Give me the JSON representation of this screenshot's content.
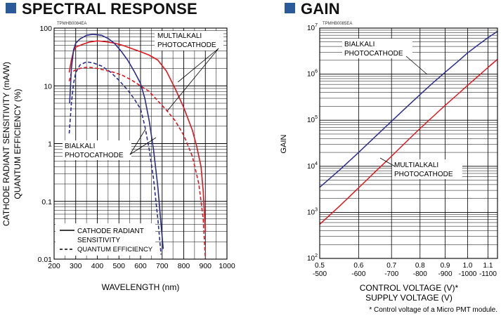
{
  "sections": {
    "spectral_title": "SPECTRAL RESPONSE",
    "gain_title": "GAIN"
  },
  "colors": {
    "header_square": "#2a5a9a",
    "multialkali": "#e0161e",
    "bialkali": "#2c2c8c",
    "grid": "#000000"
  },
  "chart_data": [
    {
      "type": "line",
      "id_code": "TPMHB0084EA",
      "title": "SPECTRAL RESPONSE",
      "xlabel": "WAVELENGTH (nm)",
      "ylabel_line1": "CATHODE RADIANT SENSITIVITY (mA/W)",
      "ylabel_line2": "QUANTUM EFFICIENCY (%)",
      "x_scale": "linear",
      "y_scale": "log",
      "xlim": [
        200,
        1000
      ],
      "ylim": [
        0.01,
        100
      ],
      "x_ticks": [
        200,
        300,
        400,
        500,
        600,
        700,
        800,
        900,
        1000
      ],
      "x_tick_labels": [
        "200",
        "300",
        "400",
        "500",
        "600",
        "700",
        "800",
        "900",
        "1000"
      ],
      "y_ticks": [
        0.01,
        0.1,
        1,
        10,
        100
      ],
      "y_tick_labels": [
        "0.01",
        "0.1",
        "1",
        "10",
        "100"
      ],
      "annotations": {
        "multialkali_line1": "MULTIALKALI",
        "multialkali_line2": "PHOTOCATHODE",
        "bialkali_line1": "BIALKALI",
        "bialkali_line2": "PHOTOCATHODE"
      },
      "legend": {
        "placement": "bottom-left",
        "solid_line1": "CATHODE RADIANT",
        "solid_line2": "SENSITIVITY",
        "dashed_label": "QUANTUM EFFICIENCY"
      },
      "series": [
        {
          "name": "Multialkali cathode radiant sensitivity",
          "color": "#e0161e",
          "dash": "solid",
          "x": [
            270,
            280,
            290,
            300,
            330,
            360,
            400,
            440,
            480,
            520,
            560,
            600,
            640,
            680,
            720,
            760,
            800,
            840,
            860,
            880,
            890,
            900
          ],
          "y": [
            17,
            28,
            40,
            47,
            52,
            57,
            60,
            58,
            55,
            50,
            44,
            39,
            34,
            28,
            18,
            9,
            4.2,
            1.7,
            0.9,
            0.4,
            0.15,
            0.03
          ]
        },
        {
          "name": "Multialkali quantum efficiency",
          "color": "#e0161e",
          "dash": "dashed",
          "x": [
            270,
            280,
            300,
            330,
            360,
            400,
            440,
            480,
            520,
            560,
            600,
            640,
            680,
            720,
            760,
            800,
            840,
            870,
            890,
            900
          ],
          "y": [
            12,
            17,
            19,
            20.5,
            21,
            20,
            18.5,
            17,
            15,
            12.5,
            10,
            8,
            5.5,
            3.8,
            2.5,
            1.4,
            0.6,
            0.2,
            0.05,
            0.01
          ]
        },
        {
          "name": "Bialkali cathode radiant sensitivity",
          "color": "#2c2c8c",
          "dash": "solid",
          "x": [
            272,
            280,
            290,
            300,
            320,
            350,
            380,
            420,
            450,
            480,
            510,
            540,
            570,
            600,
            620,
            640,
            660,
            680,
            695,
            705
          ],
          "y": [
            5,
            20,
            42,
            55,
            65,
            75,
            78,
            75,
            66,
            54,
            40,
            28,
            18,
            11,
            6,
            2.5,
            0.8,
            0.18,
            0.04,
            0.015
          ]
        },
        {
          "name": "Bialkali quantum efficiency",
          "color": "#2c2c8c",
          "dash": "dashed",
          "x": [
            270,
            280,
            290,
            300,
            320,
            350,
            380,
            420,
            460,
            500,
            540,
            570,
            600,
            620,
            640,
            660,
            680,
            695
          ],
          "y": [
            1.5,
            5,
            11,
            17,
            23,
            26,
            25,
            22,
            17.5,
            12.5,
            8.5,
            6,
            4,
            2,
            0.8,
            0.25,
            0.05,
            0.012
          ]
        }
      ]
    },
    {
      "type": "line",
      "id_code": "TPMHB0085EA",
      "title": "GAIN",
      "ylabel": "GAIN",
      "xlabel_line1": "CONTROL VOLTAGE (V)*",
      "xlabel_line2": "SUPPLY VOLTAGE (V)",
      "footnote": "* Control voltage of a Micro PMT module.",
      "x_scale": "log",
      "y_scale": "log",
      "xlim": [
        0.5,
        1.15
      ],
      "ylim": [
        100,
        10000000
      ],
      "x_ticks": [
        0.5,
        0.6,
        0.7,
        0.8,
        0.9,
        1.0,
        1.1
      ],
      "x_tick_labels_control": [
        "0.5",
        "0.6",
        "0.7",
        "0.8",
        "0.9",
        "1.0",
        "1.1"
      ],
      "x_tick_labels_supply": [
        "-500",
        "-600",
        "-700",
        "-800",
        "-900",
        "-1000",
        "-1100"
      ],
      "y_ticks": [
        100,
        1000,
        10000,
        100000,
        1000000,
        10000000
      ],
      "y_tick_mantissa": "10",
      "y_tick_exponents": [
        "2",
        "3",
        "4",
        "5",
        "6",
        "7"
      ],
      "annotations": {
        "bialkali_line1": "BIALKALI",
        "bialkali_line2": "PHOTOCATHODE",
        "multialkali_line1": "MULTIALKALI",
        "multialkali_line2": "PHOTOCATHODE"
      },
      "series": [
        {
          "name": "Bialkali",
          "color": "#2c2c8c",
          "x": [
            0.5,
            0.55,
            0.6,
            0.65,
            0.7,
            0.75,
            0.8,
            0.85,
            0.9,
            0.95,
            1.0,
            1.05,
            1.1,
            1.15
          ],
          "y": [
            3500,
            8500,
            20000,
            45000,
            95000,
            190000,
            360000,
            650000,
            1100000,
            1800000,
            2900000,
            4300000,
            6200000,
            8500000
          ]
        },
        {
          "name": "Multialkali",
          "color": "#e0161e",
          "x": [
            0.5,
            0.55,
            0.6,
            0.65,
            0.7,
            0.75,
            0.8,
            0.85,
            0.9,
            0.95,
            1.0,
            1.05,
            1.1,
            1.15
          ],
          "y": [
            550,
            1400,
            3400,
            7800,
            16500,
            34000,
            66000,
            120000,
            210000,
            350000,
            570000,
            900000,
            1400000,
            2100000
          ]
        }
      ]
    }
  ]
}
